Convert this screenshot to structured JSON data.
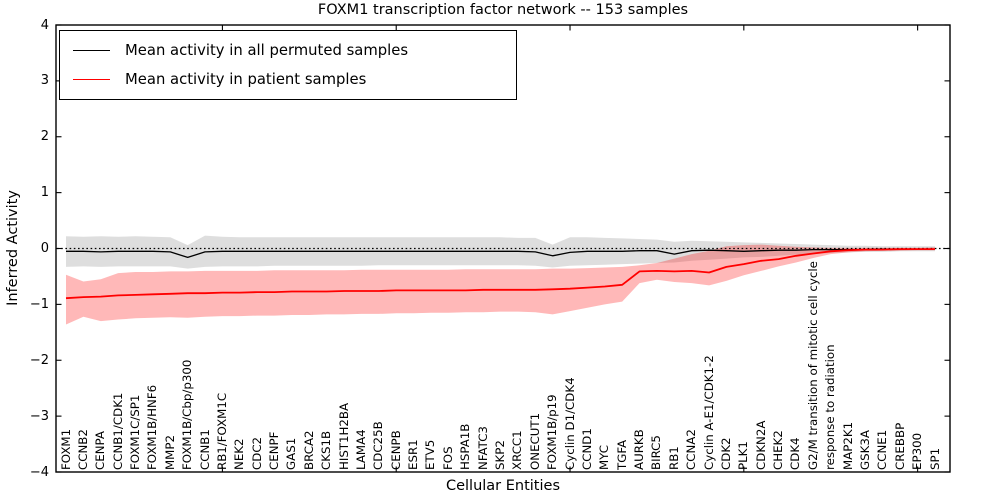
{
  "title": "FOXM1 transcription factor network -- 153 samples",
  "axes": {
    "xlabel": "Cellular Entities",
    "ylabel": "Inferred Activity",
    "ytick_labels": [
      "4",
      "3",
      "2",
      "1",
      "0",
      "−1",
      "−2",
      "−3",
      "−4"
    ],
    "ylim": [
      -4,
      4
    ]
  },
  "legend": {
    "items": [
      {
        "label": "Mean activity in all permuted samples",
        "color": "#000000"
      },
      {
        "label": "Mean activity in patient samples",
        "color": "#ff0000"
      }
    ]
  },
  "chart_data": {
    "type": "line",
    "title": "FOXM1 transcription factor network -- 153 samples",
    "xlabel": "Cellular Entities",
    "ylabel": "Inferred Activity",
    "ylim": [
      -4,
      4
    ],
    "grid": false,
    "legend_position": "upper left",
    "zero_line": {
      "y": 0,
      "style": "dotted",
      "color": "#000000"
    },
    "xtick_indices": [
      9,
      19,
      29,
      39,
      49
    ],
    "categories": [
      "FOXM1",
      "CCNB2",
      "CENPA",
      "CCNB1/CDK1",
      "FOXM1C/SP1",
      "FOXM1B/HNF6",
      "MMP2",
      "FOXM1B/Cbp/p300",
      "CCNB1",
      "RB1/FOXM1C",
      "NEK2",
      "CDC2",
      "CENPF",
      "GAS1",
      "BRCA2",
      "CKS1B",
      "HIST1H2BA",
      "LAMA4",
      "CDC25B",
      "CENPB",
      "ESR1",
      "ETV5",
      "FOS",
      "HSPA1B",
      "NFATC3",
      "SKP2",
      "XRCC1",
      "ONECUT1",
      "FOXM1B/p19",
      "Cyclin D1/CDK4",
      "CCND1",
      "MYC",
      "TGFA",
      "AURKB",
      "BIRC5",
      "RB1",
      "CCNA2",
      "Cyclin A-E1/CDK1-2",
      "CDK2",
      "PLK1",
      "CDKN2A",
      "CHEK2",
      "CDK4",
      "G2/M transition of mitotic cell cycle",
      "response to radiation",
      "MAP2K1",
      "GSK3A",
      "CCNE1",
      "CREBBP",
      "EP300",
      "SP1"
    ],
    "series": [
      {
        "name": "Mean activity in all permuted samples",
        "key": "permuted",
        "color": "#000000",
        "band_color": "rgba(0,0,0,0.13)",
        "values": [
          -0.05,
          -0.05,
          -0.06,
          -0.05,
          -0.05,
          -0.05,
          -0.06,
          -0.16,
          -0.06,
          -0.05,
          -0.05,
          -0.05,
          -0.05,
          -0.05,
          -0.05,
          -0.05,
          -0.05,
          -0.05,
          -0.05,
          -0.05,
          -0.05,
          -0.05,
          -0.05,
          -0.05,
          -0.05,
          -0.05,
          -0.05,
          -0.06,
          -0.13,
          -0.07,
          -0.05,
          -0.05,
          -0.05,
          -0.04,
          -0.04,
          -0.1,
          -0.04,
          -0.03,
          -0.04,
          -0.05,
          -0.04,
          -0.03,
          -0.03,
          -0.02,
          -0.02,
          -0.02,
          -0.02,
          -0.01,
          -0.01,
          -0.01,
          -0.01
        ],
        "band_upper": [
          0.22,
          0.21,
          0.22,
          0.21,
          0.22,
          0.21,
          0.2,
          0.06,
          0.23,
          0.21,
          0.2,
          0.2,
          0.2,
          0.2,
          0.2,
          0.2,
          0.2,
          0.2,
          0.2,
          0.2,
          0.2,
          0.2,
          0.2,
          0.2,
          0.2,
          0.2,
          0.19,
          0.19,
          0.07,
          0.2,
          0.2,
          0.19,
          0.18,
          0.17,
          0.16,
          0.12,
          0.14,
          0.13,
          0.12,
          0.11,
          0.1,
          0.09,
          0.08,
          0.07,
          0.06,
          0.05,
          0.05,
          0.04,
          0.04,
          0.04,
          0.04
        ],
        "band_lower": [
          -0.33,
          -0.32,
          -0.33,
          -0.32,
          -0.32,
          -0.32,
          -0.32,
          -0.36,
          -0.33,
          -0.32,
          -0.32,
          -0.32,
          -0.31,
          -0.31,
          -0.31,
          -0.31,
          -0.31,
          -0.31,
          -0.3,
          -0.3,
          -0.3,
          -0.3,
          -0.3,
          -0.3,
          -0.3,
          -0.3,
          -0.3,
          -0.31,
          -0.34,
          -0.31,
          -0.3,
          -0.29,
          -0.28,
          -0.27,
          -0.26,
          -0.25,
          -0.22,
          -0.2,
          -0.18,
          -0.16,
          -0.15,
          -0.13,
          -0.11,
          -0.1,
          -0.08,
          -0.07,
          -0.06,
          -0.06,
          -0.05,
          -0.05,
          -0.05
        ]
      },
      {
        "name": "Mean activity in patient samples",
        "key": "patient",
        "color": "#ff0000",
        "band_color": "rgba(255,0,0,0.28)",
        "values": [
          -0.89,
          -0.87,
          -0.86,
          -0.84,
          -0.83,
          -0.82,
          -0.81,
          -0.8,
          -0.8,
          -0.79,
          -0.79,
          -0.78,
          -0.78,
          -0.77,
          -0.77,
          -0.77,
          -0.76,
          -0.76,
          -0.76,
          -0.75,
          -0.75,
          -0.75,
          -0.75,
          -0.75,
          -0.74,
          -0.74,
          -0.74,
          -0.74,
          -0.73,
          -0.72,
          -0.7,
          -0.68,
          -0.65,
          -0.41,
          -0.4,
          -0.41,
          -0.4,
          -0.43,
          -0.33,
          -0.28,
          -0.22,
          -0.19,
          -0.13,
          -0.09,
          -0.05,
          -0.03,
          -0.02,
          -0.02,
          -0.01,
          -0.01,
          -0.01
        ],
        "band_upper": [
          -0.47,
          -0.59,
          -0.55,
          -0.44,
          -0.42,
          -0.42,
          -0.41,
          -0.41,
          -0.4,
          -0.4,
          -0.4,
          -0.4,
          -0.39,
          -0.39,
          -0.39,
          -0.39,
          -0.39,
          -0.38,
          -0.38,
          -0.38,
          -0.38,
          -0.38,
          -0.38,
          -0.37,
          -0.37,
          -0.37,
          -0.37,
          -0.37,
          -0.36,
          -0.36,
          -0.35,
          -0.34,
          -0.33,
          -0.3,
          -0.26,
          -0.18,
          -0.1,
          -0.04,
          0.04,
          0.06,
          0.07,
          0.05,
          0.03,
          0.02,
          0.01,
          0.01,
          0.01,
          0.01,
          0.01,
          0.01,
          0.02
        ],
        "band_lower": [
          -1.36,
          -1.22,
          -1.3,
          -1.27,
          -1.25,
          -1.24,
          -1.23,
          -1.24,
          -1.22,
          -1.21,
          -1.21,
          -1.2,
          -1.2,
          -1.19,
          -1.19,
          -1.18,
          -1.18,
          -1.17,
          -1.17,
          -1.16,
          -1.16,
          -1.15,
          -1.15,
          -1.14,
          -1.14,
          -1.13,
          -1.13,
          -1.14,
          -1.18,
          -1.12,
          -1.06,
          -1.0,
          -0.95,
          -0.62,
          -0.56,
          -0.6,
          -0.62,
          -0.66,
          -0.58,
          -0.48,
          -0.4,
          -0.32,
          -0.25,
          -0.17,
          -0.1,
          -0.07,
          -0.05,
          -0.04,
          -0.04,
          -0.03,
          -0.03
        ]
      }
    ]
  }
}
